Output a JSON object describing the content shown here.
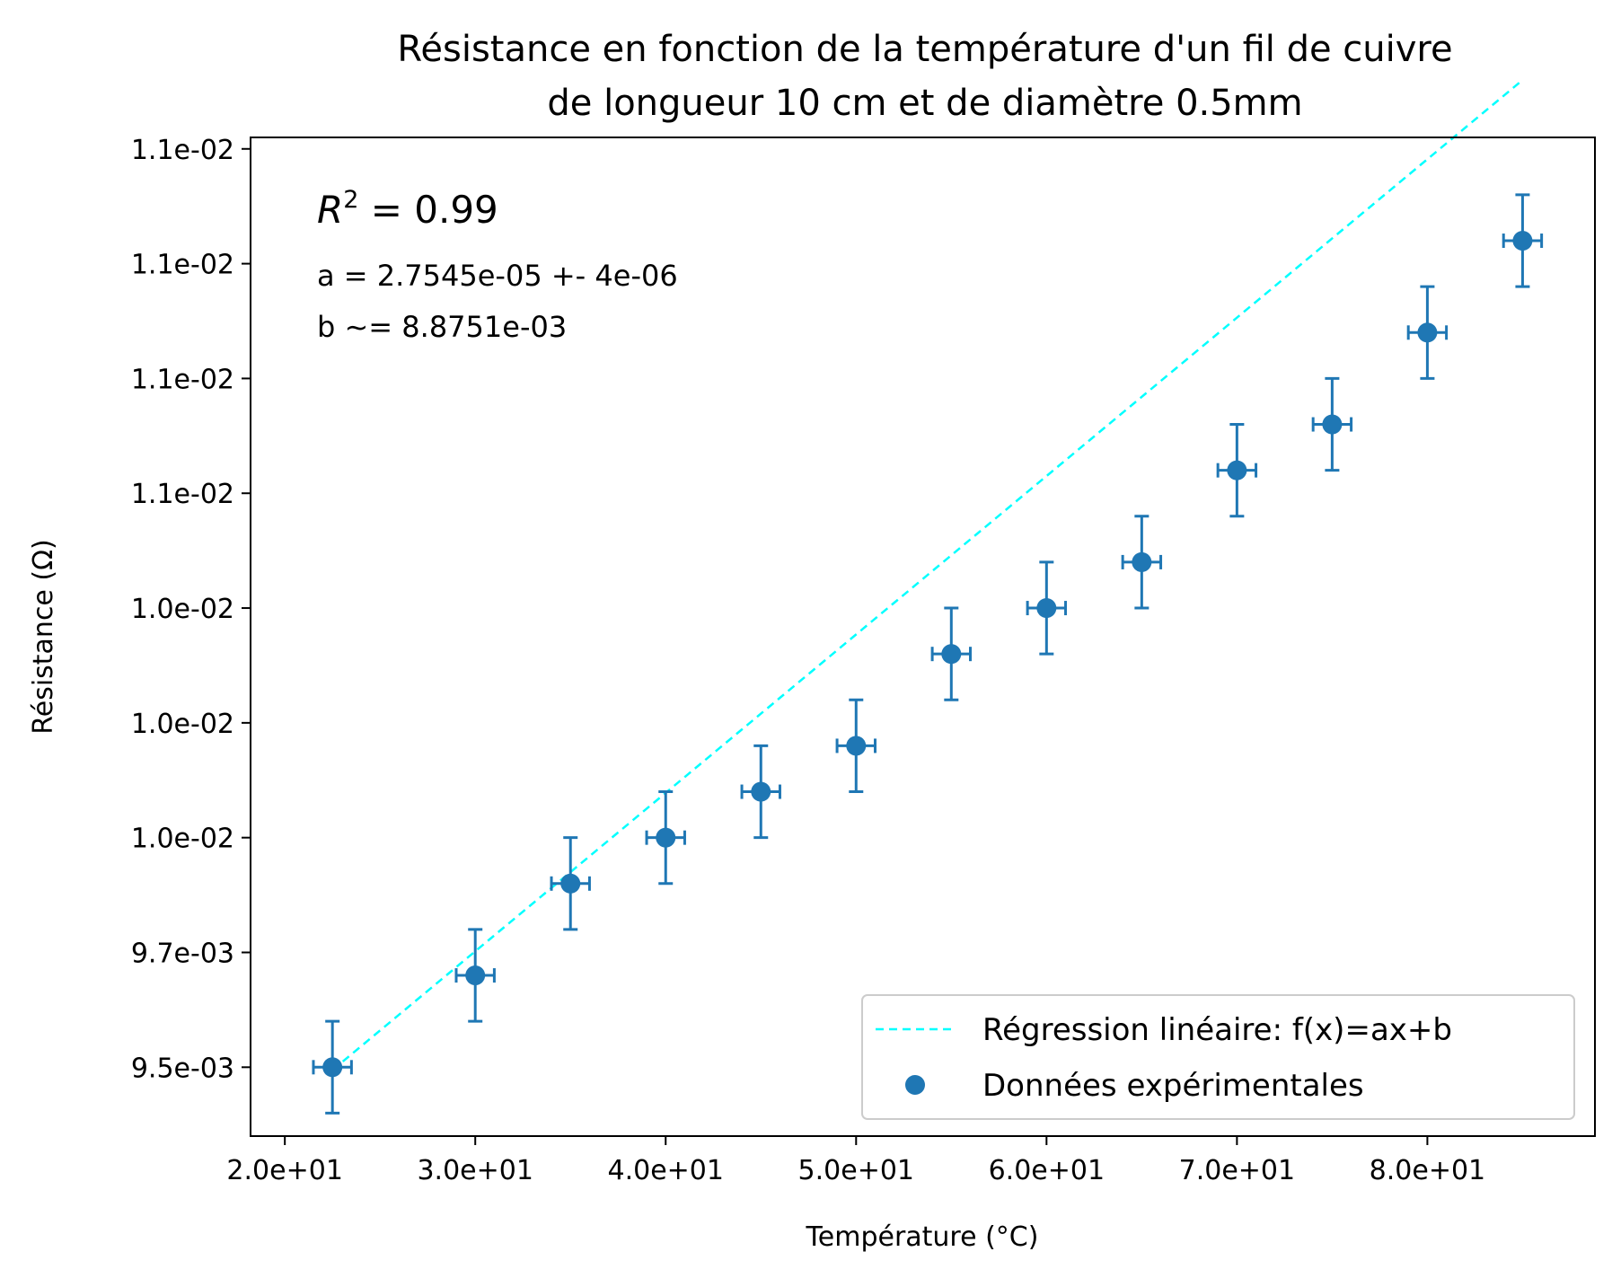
{
  "chart_data": {
    "type": "scatter",
    "title_lines": [
      "Résistance en fonction de la température d'un fil de cuivre",
      "de longueur 10 cm et de diamètre 0.5mm"
    ],
    "xlabel": "Température (°C)",
    "ylabel": "Résistance (Ω)",
    "xlim": [
      18.2,
      88.8
    ],
    "ylim": [
      0.00938,
      0.01112
    ],
    "x_ticks": [
      20,
      30,
      40,
      50,
      60,
      70,
      80
    ],
    "x_tick_labels": [
      "2.0e+01",
      "3.0e+01",
      "4.0e+01",
      "5.0e+01",
      "6.0e+01",
      "7.0e+01",
      "8.0e+01"
    ],
    "y_ticks": [
      0.0095,
      0.0097,
      0.0099,
      0.0101,
      0.0103,
      0.0105,
      0.0107,
      0.0109,
      0.0111
    ],
    "y_tick_labels": [
      "9.5e-03",
      "9.7e-03",
      "1.0e-02",
      "1.0e-02",
      "1.0e-02",
      "1.1e-02",
      "1.1e-02",
      "1.1e-02",
      "1.1e-02"
    ],
    "grid": false,
    "legend_position": "lower-right",
    "annotations": {
      "r2_base": "R",
      "r2_sup": "2",
      "r2_rest": " = 0.99",
      "line_a": "a = 2.7545e-05 +- 4e-06",
      "line_b": "b ~= 8.8751e-03"
    },
    "series": [
      {
        "name": "Régression linéaire: f(x)=ax+b",
        "kind": "line",
        "style": "dashed",
        "color": "#00ffff",
        "x": [
          22.5,
          85
        ],
        "y": [
          0.009495,
          0.01122
        ]
      },
      {
        "name": "Données expérimentales",
        "kind": "errorbar",
        "color": "#1f77b4",
        "x": [
          22.5,
          30,
          35,
          40,
          45,
          50,
          55,
          60,
          65,
          70,
          75,
          80,
          85
        ],
        "y": [
          0.0095,
          0.00966,
          0.00982,
          0.0099,
          0.00998,
          0.01006,
          0.01022,
          0.0103,
          0.01038,
          0.01054,
          0.01062,
          0.01078,
          0.01094
        ],
        "xerr": 1,
        "yerr": 8e-05
      }
    ]
  }
}
